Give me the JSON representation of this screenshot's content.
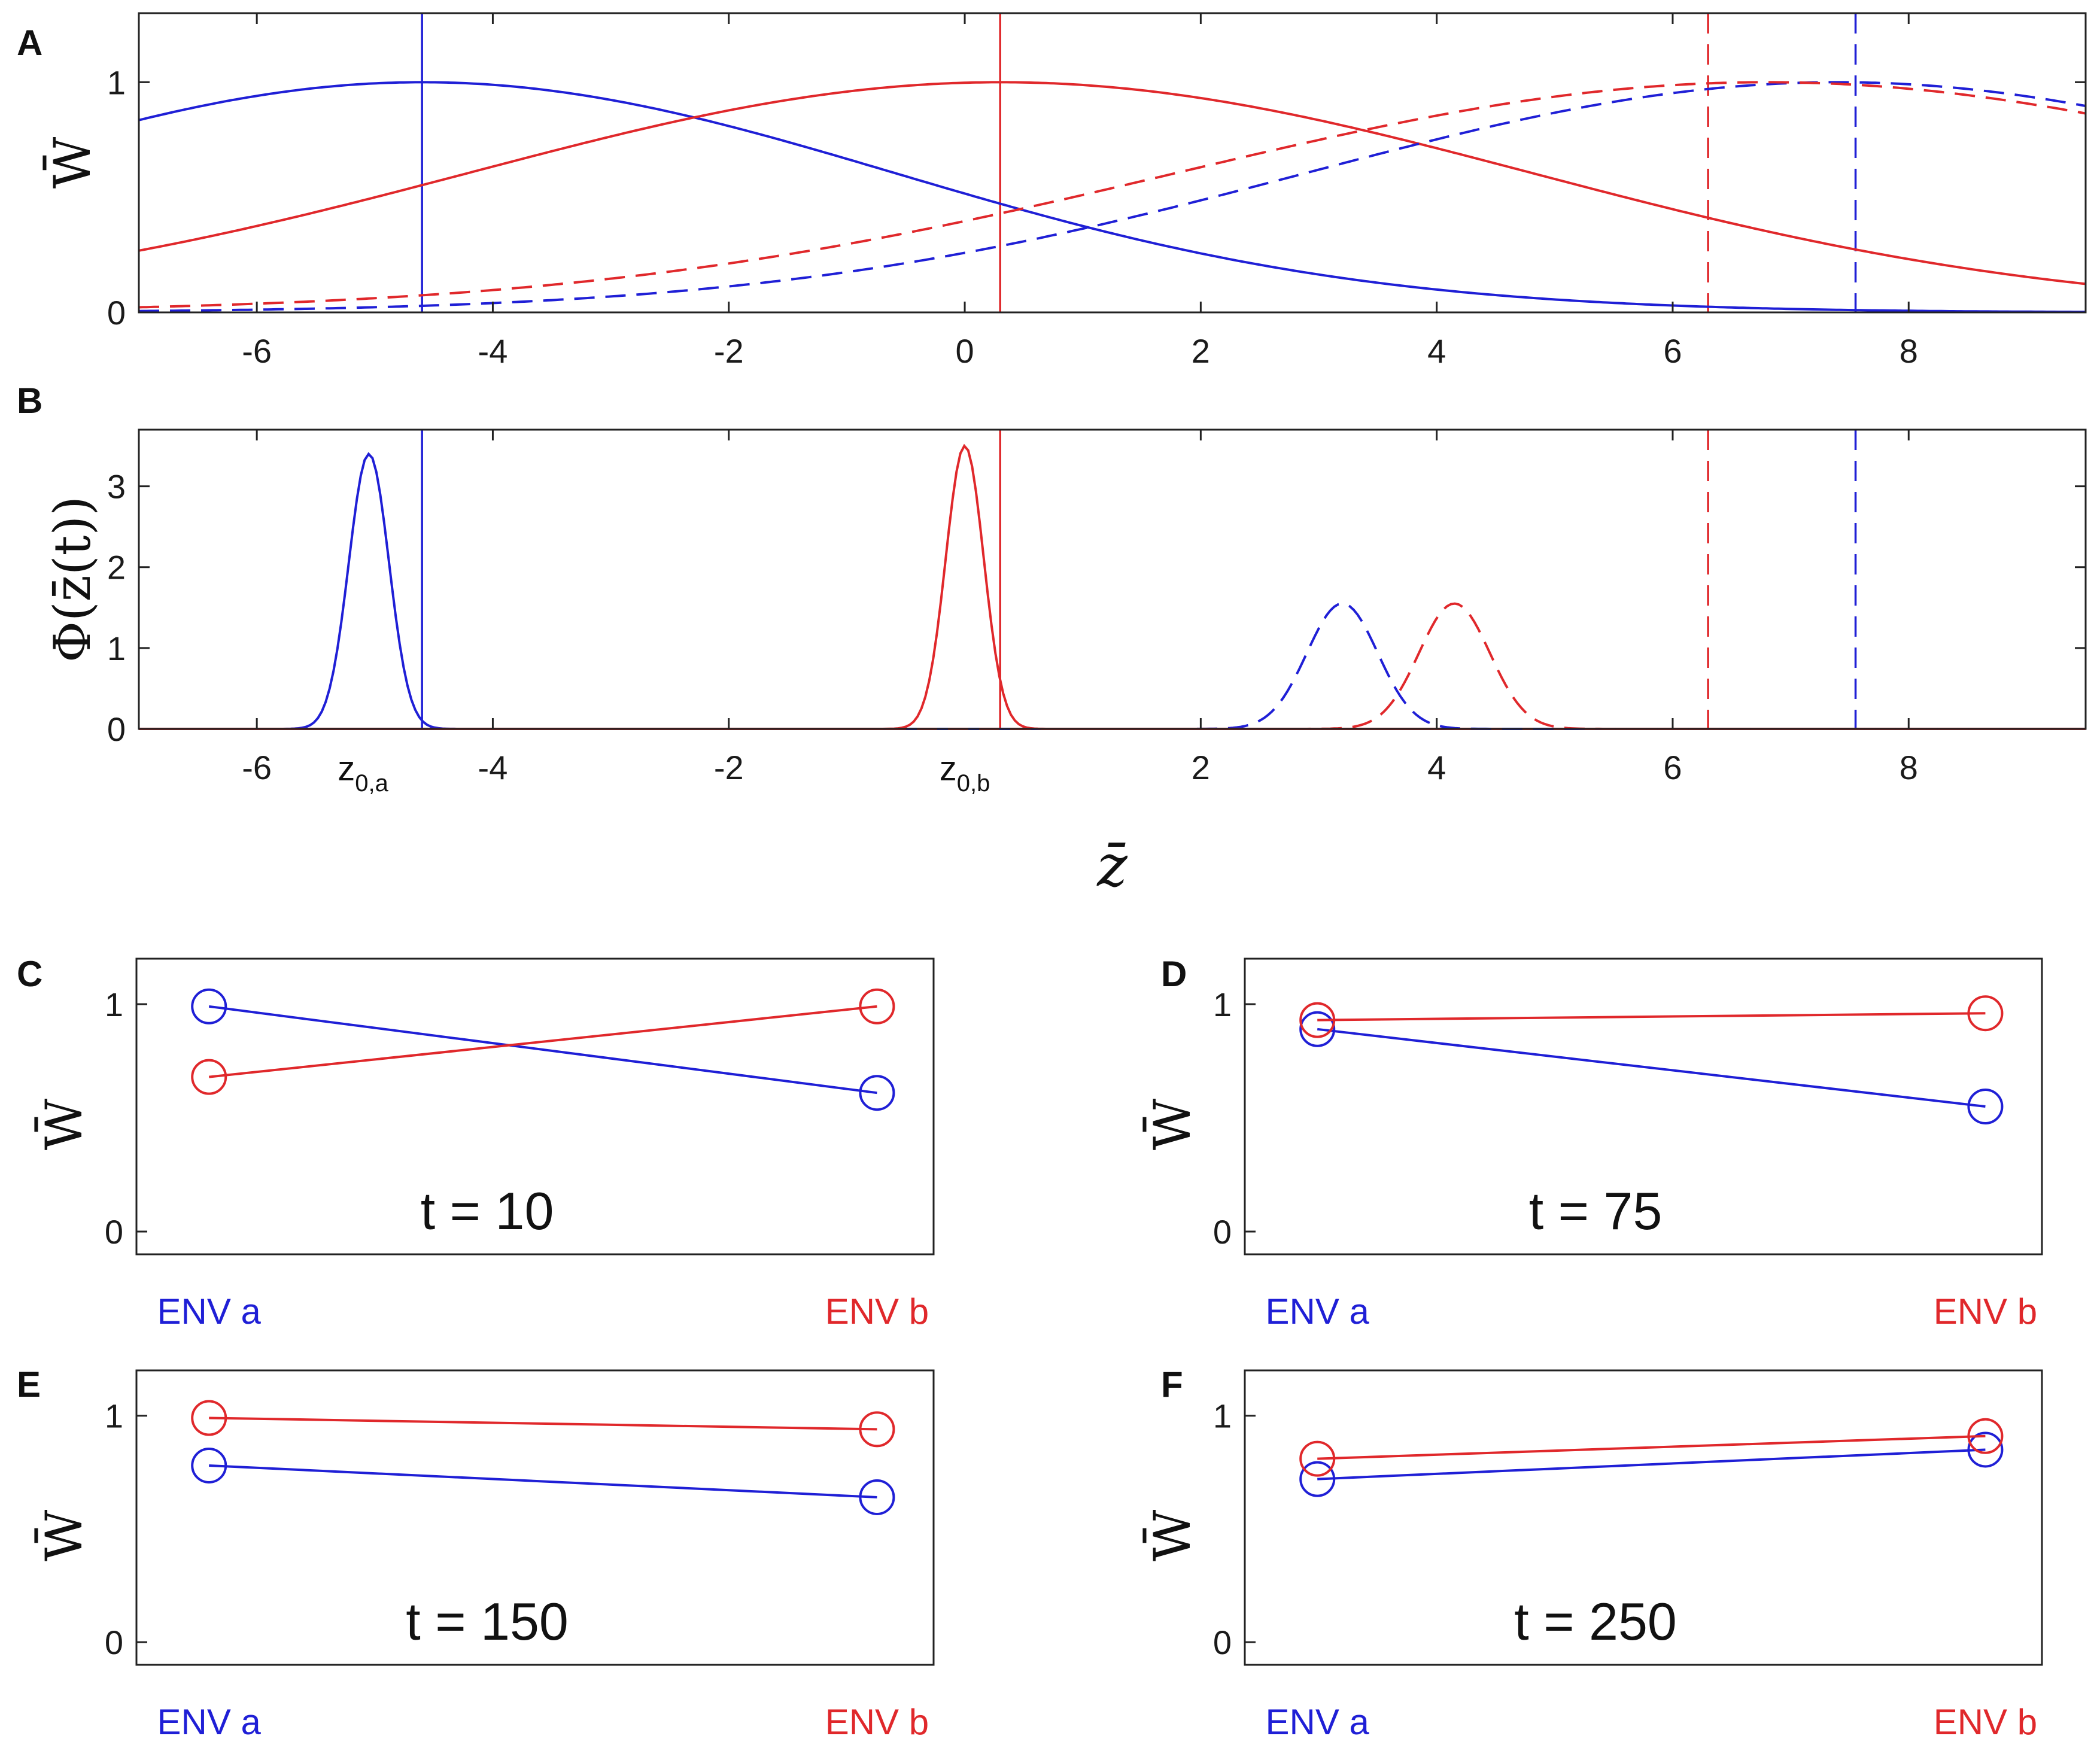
{
  "colors": {
    "env_a": "#1f1fd6",
    "env_b": "#e0282b",
    "axis": "#222222"
  },
  "chart_data": [
    {
      "panel": "A",
      "type": "line",
      "ylabel": "W̄",
      "xlim": [
        -7,
        9.5
      ],
      "ylim": [
        0,
        1.3
      ],
      "xticks": [
        -6,
        -4,
        -2,
        0,
        2,
        4,
        6,
        8
      ],
      "yticks": [
        0,
        1
      ],
      "series": [
        {
          "name": "ENV a, t=10",
          "color": "env_a",
          "style": "solid",
          "gaussian": {
            "center": -4.6,
            "sigma": 4.0
          }
        },
        {
          "name": "ENV b, t=10",
          "color": "env_b",
          "style": "solid",
          "gaussian": {
            "center": 0.3,
            "sigma": 4.5
          }
        },
        {
          "name": "ENV a, t=250",
          "color": "env_a",
          "style": "dashed",
          "gaussian": {
            "center": 7.4,
            "sigma": 4.5
          }
        },
        {
          "name": "ENV b, t=250",
          "color": "env_b",
          "style": "dashed",
          "gaussian": {
            "center": 6.8,
            "sigma": 5.0
          }
        }
      ],
      "vlines": [
        {
          "x": -4.6,
          "color": "env_a",
          "style": "solid"
        },
        {
          "x": 0.3,
          "color": "env_b",
          "style": "solid"
        },
        {
          "x": 6.3,
          "color": "env_b",
          "style": "dashed"
        },
        {
          "x": 7.55,
          "color": "env_a",
          "style": "dashed"
        }
      ]
    },
    {
      "panel": "B",
      "type": "line",
      "ylabel": "Φ(z̄(t))",
      "xlabel": "z̄",
      "xlim": [
        -7,
        9.5
      ],
      "ylim": [
        0,
        3.7
      ],
      "xticks": [
        -6,
        -4,
        -2,
        2,
        4,
        6,
        8
      ],
      "yticks": [
        0,
        1,
        2,
        3
      ],
      "xtick_labels_extra": [
        {
          "x": -5.1,
          "base": "z",
          "sub": "0,a"
        },
        {
          "x": 0.0,
          "base": "z",
          "sub": "0,b"
        }
      ],
      "series": [
        {
          "name": "ENV a, t=10",
          "color": "env_a",
          "style": "solid",
          "peak": {
            "center": -5.05,
            "height": 3.4,
            "sigma": 0.17
          }
        },
        {
          "name": "ENV b, t=10",
          "color": "env_b",
          "style": "solid",
          "peak": {
            "center": 0.0,
            "height": 3.5,
            "sigma": 0.16
          }
        },
        {
          "name": "ENV a, t=250",
          "color": "env_a",
          "style": "dashed",
          "peak": {
            "center": 3.2,
            "height": 1.55,
            "sigma": 0.3
          }
        },
        {
          "name": "ENV b, t=250",
          "color": "env_b",
          "style": "dashed",
          "peak": {
            "center": 4.15,
            "height": 1.55,
            "sigma": 0.3
          }
        }
      ],
      "vlines": [
        {
          "x": -4.6,
          "color": "env_a",
          "style": "solid"
        },
        {
          "x": 0.3,
          "color": "env_b",
          "style": "solid"
        },
        {
          "x": 6.3,
          "color": "env_b",
          "style": "dashed"
        },
        {
          "x": 7.55,
          "color": "env_a",
          "style": "dashed"
        }
      ]
    },
    {
      "panel": "C",
      "type": "line",
      "title": "t = 10",
      "ylabel": "W̄",
      "ylim": [
        -0.1,
        1.2
      ],
      "yticks": [
        0,
        1
      ],
      "categories": [
        "ENV a",
        "ENV b"
      ],
      "series": [
        {
          "name": "blue",
          "color": "env_a",
          "values": [
            0.99,
            0.61
          ]
        },
        {
          "name": "red",
          "color": "env_b",
          "values": [
            0.68,
            0.99
          ]
        }
      ]
    },
    {
      "panel": "D",
      "type": "line",
      "title": "t = 75",
      "ylabel": "W̄",
      "ylim": [
        -0.1,
        1.2
      ],
      "yticks": [
        0,
        1
      ],
      "categories": [
        "ENV a",
        "ENV b"
      ],
      "series": [
        {
          "name": "blue",
          "color": "env_a",
          "values": [
            0.89,
            0.55
          ]
        },
        {
          "name": "red",
          "color": "env_b",
          "values": [
            0.93,
            0.96
          ]
        }
      ]
    },
    {
      "panel": "E",
      "type": "line",
      "title": "t = 150",
      "ylabel": "W̄",
      "ylim": [
        -0.1,
        1.2
      ],
      "yticks": [
        0,
        1
      ],
      "categories": [
        "ENV a",
        "ENV b"
      ],
      "series": [
        {
          "name": "blue",
          "color": "env_a",
          "values": [
            0.78,
            0.64
          ]
        },
        {
          "name": "red",
          "color": "env_b",
          "values": [
            0.99,
            0.94
          ]
        }
      ]
    },
    {
      "panel": "F",
      "type": "line",
      "title": "t = 250",
      "ylabel": "W̄",
      "ylim": [
        -0.1,
        1.2
      ],
      "yticks": [
        0,
        1
      ],
      "categories": [
        "ENV a",
        "ENV b"
      ],
      "series": [
        {
          "name": "blue",
          "color": "env_a",
          "values": [
            0.72,
            0.85
          ]
        },
        {
          "name": "red",
          "color": "env_b",
          "values": [
            0.81,
            0.91
          ]
        }
      ]
    }
  ]
}
